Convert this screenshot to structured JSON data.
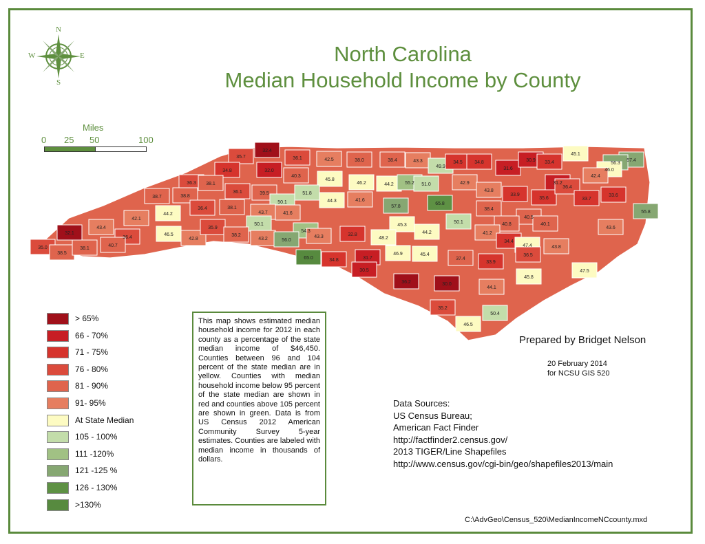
{
  "title": {
    "line1": "North Carolina",
    "line2": "Median Household Income by County"
  },
  "compass": {
    "n": "N",
    "s": "S",
    "e": "E",
    "w": "W"
  },
  "scale_bar": {
    "units": "Miles",
    "ticks": [
      "0",
      "25",
      "50",
      "100"
    ],
    "colors": [
      "#5e8f3e",
      "#ffffff"
    ]
  },
  "legend": [
    {
      "label": "> 65%",
      "color": "#a0101a"
    },
    {
      "label": "66 - 70%",
      "color": "#c71e24"
    },
    {
      "label": "71 - 75%",
      "color": "#d6342d"
    },
    {
      "label": "76 - 80%",
      "color": "#db4b3c"
    },
    {
      "label": "81 - 90%",
      "color": "#df644d"
    },
    {
      "label": "91- 95%",
      "color": "#e67e60"
    },
    {
      "label": "At State Median",
      "color": "#fdfbc2"
    },
    {
      "label": "105 - 100%",
      "color": "#c3ddaa"
    },
    {
      "label": "111 -120%",
      "color": "#a1c184"
    },
    {
      "label": "121 -125 %",
      "color": "#86a772"
    },
    {
      "label": "126 - 130%",
      "color": "#5e9144"
    },
    {
      "label": ">130%",
      "color": "#578a3f"
    }
  ],
  "notes": "This map shows estimated median household income for 2012 in each county as a percentage of the state median income of $46,450. Counties between 96 and 104 percent of the state median are in yellow. Counties with median household income below 95 percent of the state median are shown in red and counties above 105 percent are shown in green. Data is from US Census 2012 American Community Survey 5-year estimates. Counties are labeled with median income in thousands of dollars.",
  "prepared_by": "Prepared by Bridget Nelson",
  "date": "20 February 2014",
  "course": "for NCSU GIS 520",
  "sources": {
    "heading": "Data Sources:",
    "lines": [
      "US Census Bureau;",
      "American Fact Finder",
      "http://factfinder2.census.gov/",
      "2013 TIGER/Line Shapefiles",
      "http://www.census.gov/cgi-bin/geo/shapefiles2013/main"
    ]
  },
  "file_path": "C:\\AdvGeo\\Census_520\\MedianIncomeNCcounty.mxd",
  "counties": [
    {
      "v": "32.4",
      "c": "#a0101a"
    },
    {
      "v": "35.7",
      "c": "#db4b3c"
    },
    {
      "v": "36.1",
      "c": "#db4b3c"
    },
    {
      "v": "42.5",
      "c": "#e67e60"
    },
    {
      "v": "38.0",
      "c": "#df644d"
    },
    {
      "v": "38.4",
      "c": "#df644d"
    },
    {
      "v": "43.3",
      "c": "#e67e60"
    },
    {
      "v": "49.9",
      "c": "#c3ddaa"
    },
    {
      "v": "34.5",
      "c": "#d6342d"
    },
    {
      "v": "34.8",
      "c": "#d6342d"
    },
    {
      "v": "31.6",
      "c": "#c71e24"
    },
    {
      "v": "30.9",
      "c": "#c71e24"
    },
    {
      "v": "33.4",
      "c": "#d6342d"
    },
    {
      "v": "45.1",
      "c": "#fdfbc2"
    },
    {
      "v": "57.4",
      "c": "#86a772"
    },
    {
      "v": "56.3",
      "c": "#86a772"
    },
    {
      "v": "46.0",
      "c": "#fdfbc2"
    },
    {
      "v": "42.4",
      "c": "#e67e60"
    },
    {
      "v": "34.8",
      "c": "#d6342d"
    },
    {
      "v": "32.0",
      "c": "#c71e24"
    },
    {
      "v": "40.3",
      "c": "#df644d"
    },
    {
      "v": "45.8",
      "c": "#fdfbc2"
    },
    {
      "v": "46.2",
      "c": "#fdfbc2"
    },
    {
      "v": "44.2",
      "c": "#fdfbc2"
    },
    {
      "v": "55.2",
      "c": "#a1c184"
    },
    {
      "v": "51.0",
      "c": "#c3ddaa"
    },
    {
      "v": "42.9",
      "c": "#e67e60"
    },
    {
      "v": "36.3",
      "c": "#db4b3c"
    },
    {
      "v": "38.1",
      "c": "#df644d"
    },
    {
      "v": "36.1",
      "c": "#db4b3c"
    },
    {
      "v": "39.5",
      "c": "#df644d"
    },
    {
      "v": "50.1",
      "c": "#c3ddaa"
    },
    {
      "v": "51.8",
      "c": "#c3ddaa"
    },
    {
      "v": "44.3",
      "c": "#fdfbc2"
    },
    {
      "v": "41.6",
      "c": "#e67e60"
    },
    {
      "v": "57.8",
      "c": "#86a772"
    },
    {
      "v": "65.8",
      "c": "#5e9144"
    },
    {
      "v": "43.8",
      "c": "#e67e60"
    },
    {
      "v": "33.9",
      "c": "#d6342d"
    },
    {
      "v": "35.6",
      "c": "#d6342d"
    },
    {
      "v": "31.2",
      "c": "#c71e24"
    },
    {
      "v": "36.4",
      "c": "#db4b3c"
    },
    {
      "v": "33.7",
      "c": "#d6342d"
    },
    {
      "v": "33.6",
      "c": "#d6342d"
    },
    {
      "v": "38.7",
      "c": "#df644d"
    },
    {
      "v": "38.8",
      "c": "#df644d"
    },
    {
      "v": "36.4",
      "c": "#db4b3c"
    },
    {
      "v": "38.1",
      "c": "#df644d"
    },
    {
      "v": "43.7",
      "c": "#e67e60"
    },
    {
      "v": "41.6",
      "c": "#e67e60"
    },
    {
      "v": "38.4",
      "c": "#df644d"
    },
    {
      "v": "40.5",
      "c": "#df644d"
    },
    {
      "v": "40.8",
      "c": "#df644d"
    },
    {
      "v": "40.1",
      "c": "#df644d"
    },
    {
      "v": "55.8",
      "c": "#86a772"
    },
    {
      "v": "42.1",
      "c": "#e67e60"
    },
    {
      "v": "44.2",
      "c": "#fdfbc2"
    },
    {
      "v": "50.1",
      "c": "#c3ddaa"
    },
    {
      "v": "45.3",
      "c": "#fdfbc2"
    },
    {
      "v": "44.2",
      "c": "#fdfbc2"
    },
    {
      "v": "50.1",
      "c": "#c3ddaa"
    },
    {
      "v": "41.2",
      "c": "#e67e60"
    },
    {
      "v": "43.6",
      "c": "#e67e60"
    },
    {
      "v": "43.4",
      "c": "#e67e60"
    },
    {
      "v": "32.1",
      "c": "#a0101a"
    },
    {
      "v": "36.4",
      "c": "#db4b3c"
    },
    {
      "v": "46.5",
      "c": "#fdfbc2"
    },
    {
      "v": "42.8",
      "c": "#e67e60"
    },
    {
      "v": "35.9",
      "c": "#db4b3c"
    },
    {
      "v": "38.2",
      "c": "#df644d"
    },
    {
      "v": "43.2",
      "c": "#e67e60"
    },
    {
      "v": "54.3",
      "c": "#a1c184"
    },
    {
      "v": "56.0",
      "c": "#86a772"
    },
    {
      "v": "43.3",
      "c": "#e67e60"
    },
    {
      "v": "32.8",
      "c": "#d6342d"
    },
    {
      "v": "48.2",
      "c": "#fdfbc2"
    },
    {
      "v": "34.4",
      "c": "#d6342d"
    },
    {
      "v": "47.4",
      "c": "#fdfbc2"
    },
    {
      "v": "43.8",
      "c": "#e67e60"
    },
    {
      "v": "35.0",
      "c": "#db4b3c"
    },
    {
      "v": "38.5",
      "c": "#df644d"
    },
    {
      "v": "38.1",
      "c": "#df644d"
    },
    {
      "v": "40.7",
      "c": "#df644d"
    },
    {
      "v": "65.0",
      "c": "#578a3f"
    },
    {
      "v": "34.8",
      "c": "#d6342d"
    },
    {
      "v": "31.7",
      "c": "#c71e24"
    },
    {
      "v": "46.9",
      "c": "#fdfbc2"
    },
    {
      "v": "45.4",
      "c": "#fdfbc2"
    },
    {
      "v": "37.4",
      "c": "#df644d"
    },
    {
      "v": "33.9",
      "c": "#d6342d"
    },
    {
      "v": "36.5",
      "c": "#db4b3c"
    },
    {
      "v": "47.5",
      "c": "#fdfbc2"
    },
    {
      "v": "30.5",
      "c": "#c71e24"
    },
    {
      "v": "36.2",
      "c": "#a0101a"
    },
    {
      "v": "30.0",
      "c": "#a0101a"
    },
    {
      "v": "45.8",
      "c": "#fdfbc2"
    },
    {
      "v": "44.1",
      "c": "#e67e60"
    },
    {
      "v": "35.2",
      "c": "#db4b3c"
    },
    {
      "v": "50.4",
      "c": "#c3ddaa"
    },
    {
      "v": "46.5",
      "c": "#fdfbc2"
    }
  ]
}
